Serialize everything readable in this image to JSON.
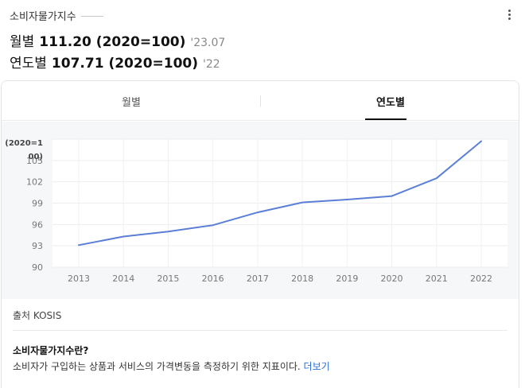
{
  "header": {
    "title": "소비자물가지수",
    "monthly": {
      "label": "월별",
      "value": "111.20 (2020=100)",
      "date": "'23.07"
    },
    "yearly": {
      "label": "연도별",
      "value": "107.71 (2020=100)",
      "date": "'22"
    }
  },
  "tabs": [
    {
      "label": "월별",
      "active": false
    },
    {
      "label": "연도별",
      "active": true
    }
  ],
  "chart_data": {
    "type": "line",
    "ylabel_lines": [
      "(2020=1",
      "00)"
    ],
    "ytick_labels": [
      "105",
      "102",
      "99",
      "96",
      "93",
      "90"
    ],
    "ylim": [
      90,
      108
    ],
    "categories": [
      "2013",
      "2014",
      "2015",
      "2016",
      "2017",
      "2018",
      "2019",
      "2020",
      "2021",
      "2022"
    ],
    "series": [
      {
        "values": [
          93.1,
          94.3,
          95.0,
          95.9,
          97.7,
          99.1,
          99.5,
          100.0,
          102.5,
          107.71
        ]
      }
    ],
    "grid": true,
    "line_color": "#5b7fd6"
  },
  "source": {
    "text": "출처 KOSIS"
  },
  "definition": {
    "title": "소비자물가지수란?",
    "text": "소비자가 구입하는 상품과 서비스의 가격변동을 측정하기 위한 지표이다.",
    "more_label": "더보기"
  }
}
